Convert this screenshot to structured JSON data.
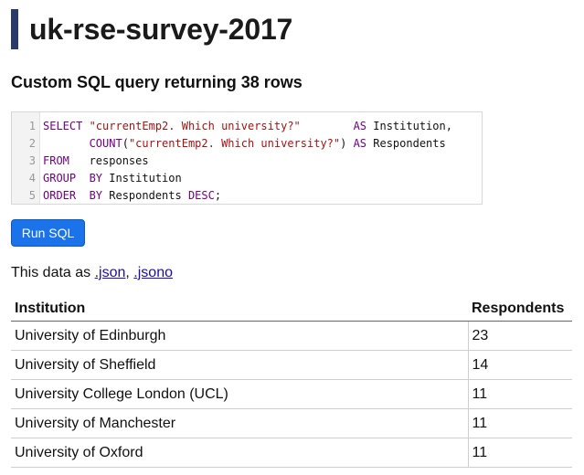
{
  "header": {
    "title": "uk-rse-survey-2017"
  },
  "query": {
    "heading": "Custom SQL query returning 38 rows",
    "lines": [
      {
        "n": "1",
        "parts": [
          {
            "t": "SELECT ",
            "c": "kw"
          },
          {
            "t": "\"currentEmp2. Which university?\"",
            "c": "str"
          },
          {
            "t": "        ",
            "c": "plain"
          },
          {
            "t": "AS",
            "c": "kw"
          },
          {
            "t": " Institution,",
            "c": "plain"
          }
        ]
      },
      {
        "n": "2",
        "parts": [
          {
            "t": "       ",
            "c": "plain"
          },
          {
            "t": "COUNT",
            "c": "kw"
          },
          {
            "t": "(",
            "c": "plain"
          },
          {
            "t": "\"currentEmp2. Which university?\"",
            "c": "str"
          },
          {
            "t": ") ",
            "c": "plain"
          },
          {
            "t": "AS",
            "c": "kw"
          },
          {
            "t": " Respondents",
            "c": "plain"
          }
        ]
      },
      {
        "n": "3",
        "parts": [
          {
            "t": "FROM",
            "c": "kw"
          },
          {
            "t": "   responses",
            "c": "plain"
          }
        ]
      },
      {
        "n": "4",
        "parts": [
          {
            "t": "GROUP",
            "c": "kw"
          },
          {
            "t": "  ",
            "c": "plain"
          },
          {
            "t": "BY",
            "c": "kw"
          },
          {
            "t": " Institution",
            "c": "plain"
          }
        ]
      },
      {
        "n": "5",
        "parts": [
          {
            "t": "ORDER",
            "c": "kw"
          },
          {
            "t": "  ",
            "c": "plain"
          },
          {
            "t": "BY",
            "c": "kw"
          },
          {
            "t": " Respondents ",
            "c": "plain"
          },
          {
            "t": "DESC",
            "c": "kw"
          },
          {
            "t": ";",
            "c": "plain"
          }
        ]
      }
    ],
    "run_label": "Run SQL"
  },
  "export": {
    "prefix": "This data as ",
    "json_label": ".json",
    "separator": ", ",
    "jsono_label": ".jsono"
  },
  "table": {
    "columns": [
      "Institution",
      "Respondents"
    ],
    "rows": [
      [
        "University of Edinburgh",
        "23"
      ],
      [
        "University of Sheffield",
        "14"
      ],
      [
        "University College London (UCL)",
        "11"
      ],
      [
        "University of Manchester",
        "11"
      ],
      [
        "University of Oxford",
        "11"
      ]
    ]
  }
}
